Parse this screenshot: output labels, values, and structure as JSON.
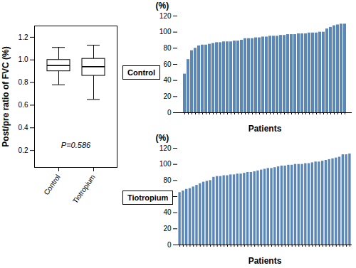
{
  "chart_data": [
    {
      "type": "box",
      "categories": [
        "Control",
        "Tiotropium"
      ],
      "min": [
        0.78,
        0.65
      ],
      "q1": [
        0.9,
        0.86
      ],
      "median": [
        0.95,
        0.94
      ],
      "q3": [
        1.0,
        1.01
      ],
      "max": [
        1.11,
        1.13
      ],
      "y_label": "Post/pre ratio of FVC (%)",
      "ylim": [
        0.05,
        1.3
      ],
      "yticks": [
        0.2,
        0.4,
        0.6,
        0.8,
        {
          "value": 1,
          "label": "1.0"
        },
        1.2
      ],
      "annotation": "P=0.586"
    },
    {
      "type": "bar",
      "title": "Control",
      "x_label": "Patients",
      "y_label": "(%)",
      "color": "#5a86b8",
      "categories": [
        null,
        null,
        null,
        null,
        null,
        null,
        null,
        null,
        null,
        null,
        null,
        null,
        null,
        null,
        null,
        null,
        null,
        null,
        null,
        null,
        null,
        null,
        null,
        null,
        null,
        null,
        null,
        null,
        null,
        null,
        null,
        null,
        null,
        null,
        null,
        null,
        null,
        null,
        null,
        null,
        null,
        null,
        null,
        null,
        null,
        null
      ],
      "values": [
        48,
        66,
        77,
        80,
        83,
        84,
        84,
        85,
        86,
        87,
        87,
        88,
        88,
        88,
        89,
        89,
        90,
        92,
        92,
        92,
        93,
        93,
        94,
        94,
        95,
        95,
        95,
        96,
        96,
        97,
        97,
        97,
        98,
        98,
        98,
        99,
        99,
        99,
        100,
        100,
        104,
        106,
        108,
        109,
        110,
        110
      ],
      "ylim": [
        0,
        120
      ],
      "yticks": [
        0,
        20,
        40,
        60,
        80,
        100,
        120
      ]
    },
    {
      "type": "bar",
      "title": "Tiotropium",
      "x_label": "Patients",
      "y_label": "(%)",
      "color": "#5a86b8",
      "categories": [
        null,
        null,
        null,
        null,
        null,
        null,
        null,
        null,
        null,
        null,
        null,
        null,
        null,
        null,
        null,
        null,
        null,
        null,
        null,
        null,
        null,
        null,
        null,
        null,
        null,
        null,
        null,
        null,
        null,
        null,
        null,
        null,
        null,
        null,
        null,
        null,
        null,
        null,
        null,
        null,
        null,
        null,
        null,
        null,
        null,
        null,
        null,
        null,
        null,
        null,
        null
      ],
      "values": [
        65,
        67,
        69,
        70,
        72,
        74,
        76,
        78,
        79,
        80,
        84,
        85,
        85,
        86,
        86,
        87,
        87,
        88,
        88,
        89,
        90,
        90,
        91,
        92,
        93,
        94,
        95,
        95,
        96,
        97,
        98,
        98,
        99,
        99,
        100,
        100,
        100,
        101,
        101,
        102,
        103,
        103,
        104,
        105,
        106,
        107,
        108,
        109,
        112,
        112,
        113
      ],
      "ylim": [
        0,
        120
      ],
      "yticks": [
        0,
        20,
        40,
        60,
        80,
        100,
        120
      ]
    }
  ]
}
